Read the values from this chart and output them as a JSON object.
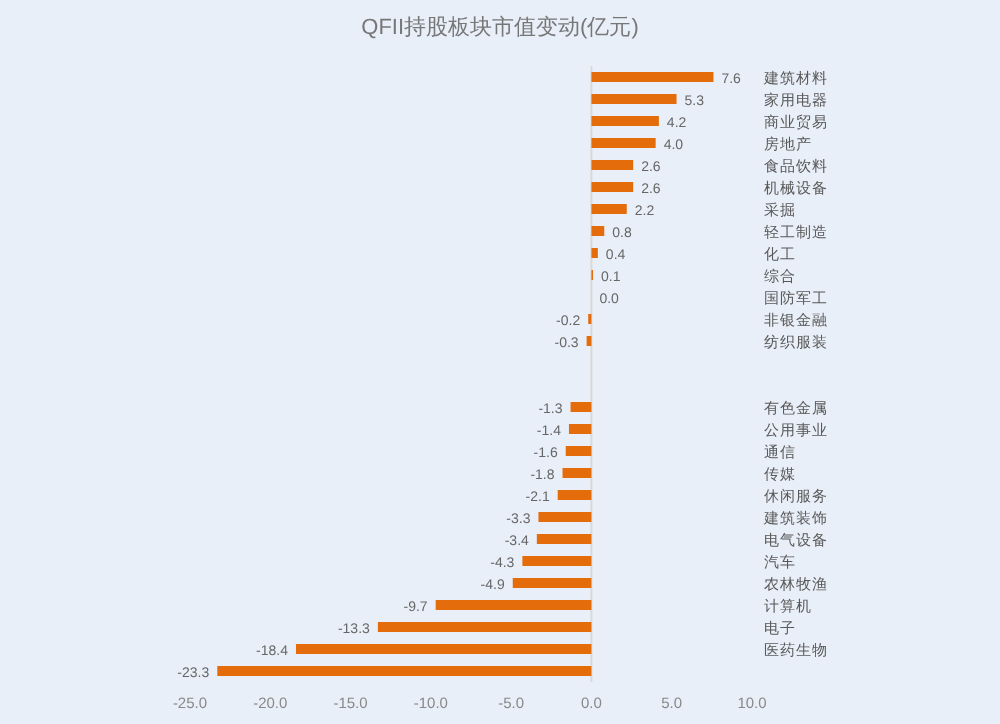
{
  "chart_data": {
    "type": "bar",
    "orientation": "horizontal",
    "title": "QFII持股板块市值变动(亿元)",
    "categories": [
      "建筑材料",
      "家用电器",
      "商业贸易",
      "房地产",
      "食品饮料",
      "机械设备",
      "采掘",
      "轻工制造",
      "化工",
      "综合",
      "国防军工",
      "非银金融",
      "纺织服装",
      null,
      null,
      "有色金属",
      "公用事业",
      "通信",
      "传媒",
      "休闲服务",
      "建筑装饰",
      "电气设备",
      "汽车",
      "农林牧渔",
      "计算机",
      "电子",
      "医药生物",
      null
    ],
    "values": [
      7.6,
      5.3,
      4.2,
      4.0,
      2.6,
      2.6,
      2.2,
      0.8,
      0.4,
      0.1,
      0.0,
      -0.2,
      -0.3,
      null,
      null,
      -1.3,
      -1.4,
      -1.6,
      -1.8,
      -2.1,
      -3.3,
      -3.4,
      -4.3,
      -4.9,
      -9.7,
      -13.3,
      -18.4,
      -23.3
    ],
    "value_labels": [
      "7.6",
      "5.3",
      "4.2",
      "4.0",
      "2.6",
      "2.6",
      "2.2",
      "0.8",
      "0.4",
      "0.1",
      "0.0",
      "-0.2",
      "-0.3",
      null,
      null,
      "-1.3",
      "-1.4",
      "-1.6",
      "-1.8",
      "-2.1",
      "-3.3",
      "-3.4",
      "-4.3",
      "-4.9",
      "-9.7",
      "-13.3",
      "-18.4",
      "-23.3"
    ],
    "color": "#e46c0a",
    "xlim": [
      -25,
      10
    ],
    "xticks": [
      {
        "value": -25,
        "label": "-25.0"
      },
      {
        "value": -20,
        "label": "-20.0"
      },
      {
        "value": -15,
        "label": "-15.0"
      },
      {
        "value": -10,
        "label": "-10.0"
      },
      {
        "value": -5,
        "label": "-5.0"
      },
      {
        "value": 0,
        "label": "0.0"
      },
      {
        "value": 5,
        "label": "5.0"
      },
      {
        "value": 10,
        "label": "10.0"
      }
    ]
  }
}
